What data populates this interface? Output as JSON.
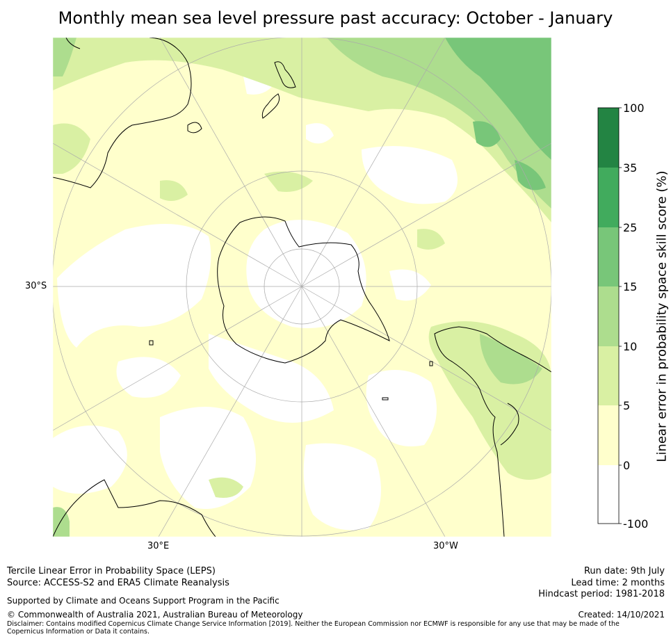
{
  "title": "Monthly mean sea level pressure past accuracy: October - January",
  "axis_labels": {
    "lat": "30°S",
    "lon_east": "30°E",
    "lon_west": "30°W"
  },
  "colors": {
    "c0": "#ffffff",
    "c5": "#ffffcc",
    "c10": "#d9f0a3",
    "c15": "#addd8e",
    "c25": "#78c679",
    "c35": "#41ab5d",
    "c100": "#238443",
    "coast": "#000000",
    "grid": "#aaaaaa"
  },
  "colorbar": {
    "label": "Linear error in probability space skill score (%)",
    "ticks": [
      "100",
      "35",
      "25",
      "15",
      "10",
      "5",
      "0",
      "-100"
    ]
  },
  "footer": {
    "line1": "Tercile Linear Error in Probability Space (LEPS)",
    "line2": "Source: ACCESS-S2 and ERA5 Climate Reanalysis",
    "line3": "Supported by Climate and Oceans Support Program in the Pacific",
    "line4": "© Commonwealth of Australia 2021, Australian Bureau of Meteorology",
    "disclaimer": "Disclaimer: Contains modified Copernicus Climate Change Service Information [2019]. Neither the European Commission nor ECMWF is responsible for any use that may be made of the Copernicus Information or Data it contains.",
    "run_date": "Run date: 9th July",
    "lead_time": "Lead time: 2 months",
    "hindcast": "Hindcast period: 1981-2018",
    "created": "Created: 14/10/2021"
  }
}
